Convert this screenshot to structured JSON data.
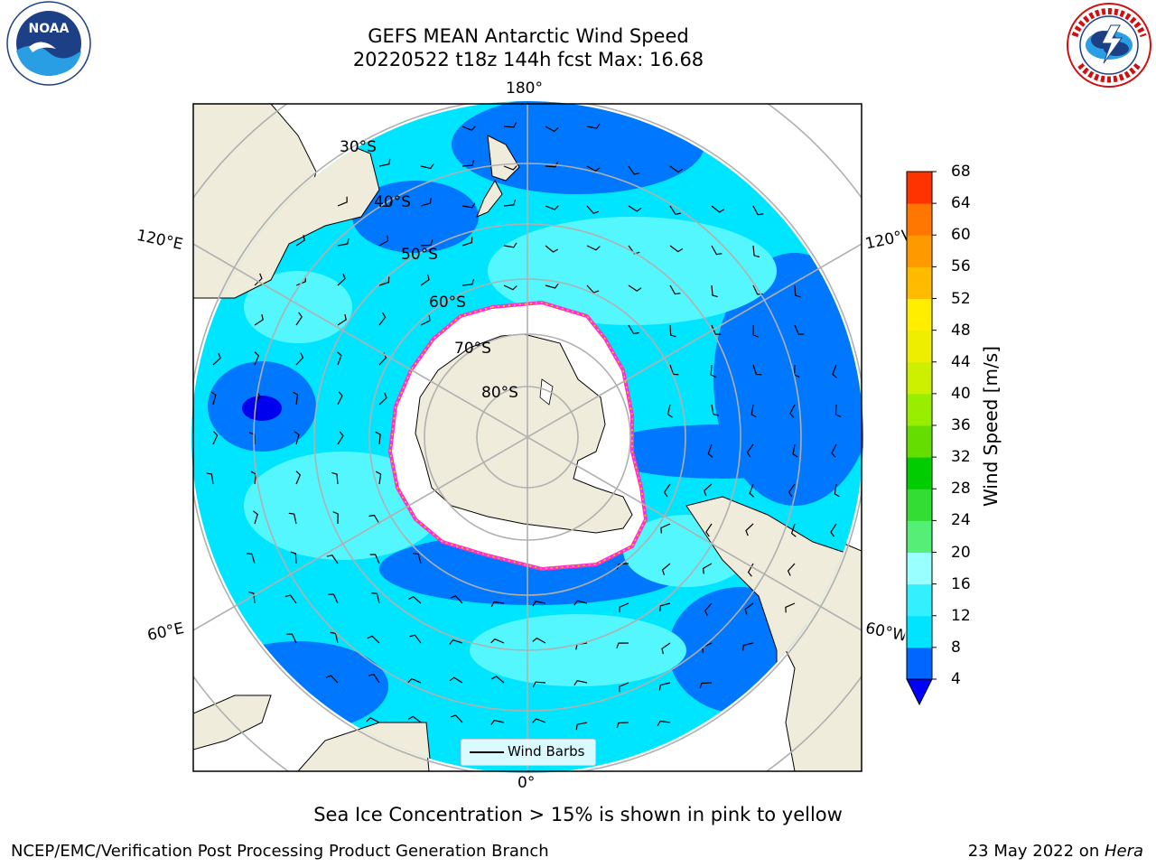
{
  "title": {
    "line1": "GEFS MEAN Antarctic Wind Speed",
    "line2": "20220522 t18z 144h fcst   Max: 16.68"
  },
  "logos": {
    "noaa": {
      "text": "NOAA",
      "ring_text": "NATIONAL OCEANIC AND ATMOSPHERIC ADMINISTRATION · U.S. DEPARTMENT OF COMMERCE"
    },
    "nws": {
      "ring_text": "NATIONAL WEATHER SERVICE"
    }
  },
  "map": {
    "projection": "south-polar-stereographic",
    "lon_labels": {
      "top": "180°",
      "bottom": "0°",
      "upper_left": "120°E",
      "upper_right": "120°W",
      "lower_left": "60°E",
      "lower_right": "60°W"
    },
    "lat_labels": [
      "30°S",
      "40°S",
      "50°S",
      "60°S",
      "70°S",
      "80°S"
    ],
    "colors": {
      "land": "#efecdc",
      "ice": "#ffffff",
      "ice_edge": "#ff33cc",
      "grid": "#b0b0b0"
    }
  },
  "legend": {
    "label": "Wind Barbs"
  },
  "colorbar": {
    "label": "Wind Speed [m/s]",
    "ticks": [
      "4",
      "8",
      "12",
      "16",
      "20",
      "24",
      "28",
      "32",
      "36",
      "40",
      "44",
      "48",
      "52",
      "56",
      "60",
      "64",
      "68"
    ],
    "colors": [
      "#0066ff",
      "#00e5ff",
      "#33f0ff",
      "#99ffff",
      "#55ee77",
      "#33dd33",
      "#00cc00",
      "#66dd00",
      "#99ee00",
      "#ccf000",
      "#eeee00",
      "#ffee00",
      "#ffbb00",
      "#ff9900",
      "#ff7700",
      "#ff3300",
      "#ff0000"
    ],
    "extend_color": "#0000ff"
  },
  "caption": "Sea Ice Concentration > 15% is shown in pink to yellow",
  "footer": {
    "left": "NCEP/EMC/Verification Post Processing Product Generation Branch",
    "right_prefix": "23 May 2022 on ",
    "right_machine": "Hera"
  }
}
